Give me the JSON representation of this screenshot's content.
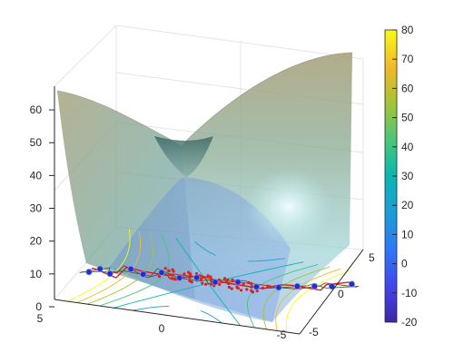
{
  "chart_data": {
    "type": "surface3d",
    "surface": {
      "shape": "saddle",
      "formula": "z = 3*x^2 - 0.8*y^2 + 20 (approx.)",
      "zmax_at_corners": 62,
      "zmin_saddle": 18
    },
    "z_axis": {
      "ticks": [
        "0",
        "10",
        "20",
        "30",
        "40",
        "50",
        "60"
      ],
      "range": [
        0,
        65
      ]
    },
    "x_axis": {
      "ticks": [
        "5",
        "0",
        "-5"
      ],
      "range": [
        -5,
        5
      ]
    },
    "y_axis": {
      "ticks": [
        "-5",
        "0",
        "5"
      ],
      "range": [
        -5,
        5
      ]
    },
    "colorbar": {
      "ticks": [
        "80",
        "70",
        "60",
        "50",
        "40",
        "30",
        "20",
        "10",
        "0",
        "-10",
        "-20"
      ],
      "range": [
        -20,
        80
      ],
      "colormap": "parula"
    },
    "contour_levels": [
      -20,
      -10,
      0,
      10,
      20,
      30,
      40,
      50,
      60
    ],
    "trajectory_markers": {
      "count": 16,
      "marker_color": "#1f2fc9",
      "path_colors": [
        "#e01b1b",
        "#a52a2a",
        "#1e7a1e"
      ]
    },
    "grid": true
  }
}
